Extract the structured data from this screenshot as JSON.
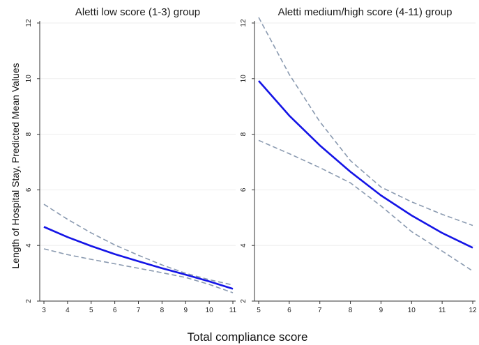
{
  "figure": {
    "xlabel": "Total compliance score",
    "ylabel": "Length of Hospital Stay,  Predicted Mean Values"
  },
  "colors": {
    "predicted": "#1414e6",
    "ci": "#8a9ab0"
  },
  "chart_data": [
    {
      "type": "line",
      "title": "Aletti low score (1-3) group",
      "xlim": [
        3,
        11
      ],
      "ylim": [
        2,
        12
      ],
      "xticks": [
        3,
        4,
        5,
        6,
        7,
        8,
        9,
        10,
        11
      ],
      "yticks": [
        2,
        4,
        6,
        8,
        10,
        12
      ],
      "grid": true,
      "x": [
        3,
        4,
        5,
        6,
        7,
        8,
        9,
        10,
        11
      ],
      "series": [
        {
          "role": "predicted",
          "values": [
            4.67,
            4.3,
            3.98,
            3.69,
            3.43,
            3.18,
            2.95,
            2.71,
            2.44
          ]
        },
        {
          "role": "ci_upper",
          "values": [
            5.48,
            4.94,
            4.45,
            4.02,
            3.65,
            3.3,
            3.0,
            2.77,
            2.58
          ]
        },
        {
          "role": "ci_lower",
          "values": [
            3.88,
            3.67,
            3.5,
            3.34,
            3.18,
            3.02,
            2.85,
            2.6,
            2.3
          ]
        }
      ]
    },
    {
      "type": "line",
      "title": "Aletti medium/high score (4-11) group",
      "xlim": [
        5,
        12
      ],
      "ylim": [
        2,
        12
      ],
      "xticks": [
        5,
        6,
        7,
        8,
        9,
        10,
        11,
        12
      ],
      "yticks": [
        2,
        4,
        6,
        8,
        10,
        12
      ],
      "grid": true,
      "x": [
        5,
        6,
        7,
        8,
        9,
        10,
        11,
        12
      ],
      "series": [
        {
          "role": "predicted",
          "values": [
            9.92,
            8.67,
            7.6,
            6.65,
            5.8,
            5.08,
            4.45,
            3.92
          ]
        },
        {
          "role": "ci_upper",
          "values": [
            12.2,
            10.15,
            8.45,
            7.05,
            6.1,
            5.57,
            5.12,
            4.72
          ]
        },
        {
          "role": "ci_lower",
          "values": [
            7.78,
            7.3,
            6.8,
            6.25,
            5.42,
            4.5,
            3.8,
            3.08
          ]
        }
      ]
    }
  ]
}
